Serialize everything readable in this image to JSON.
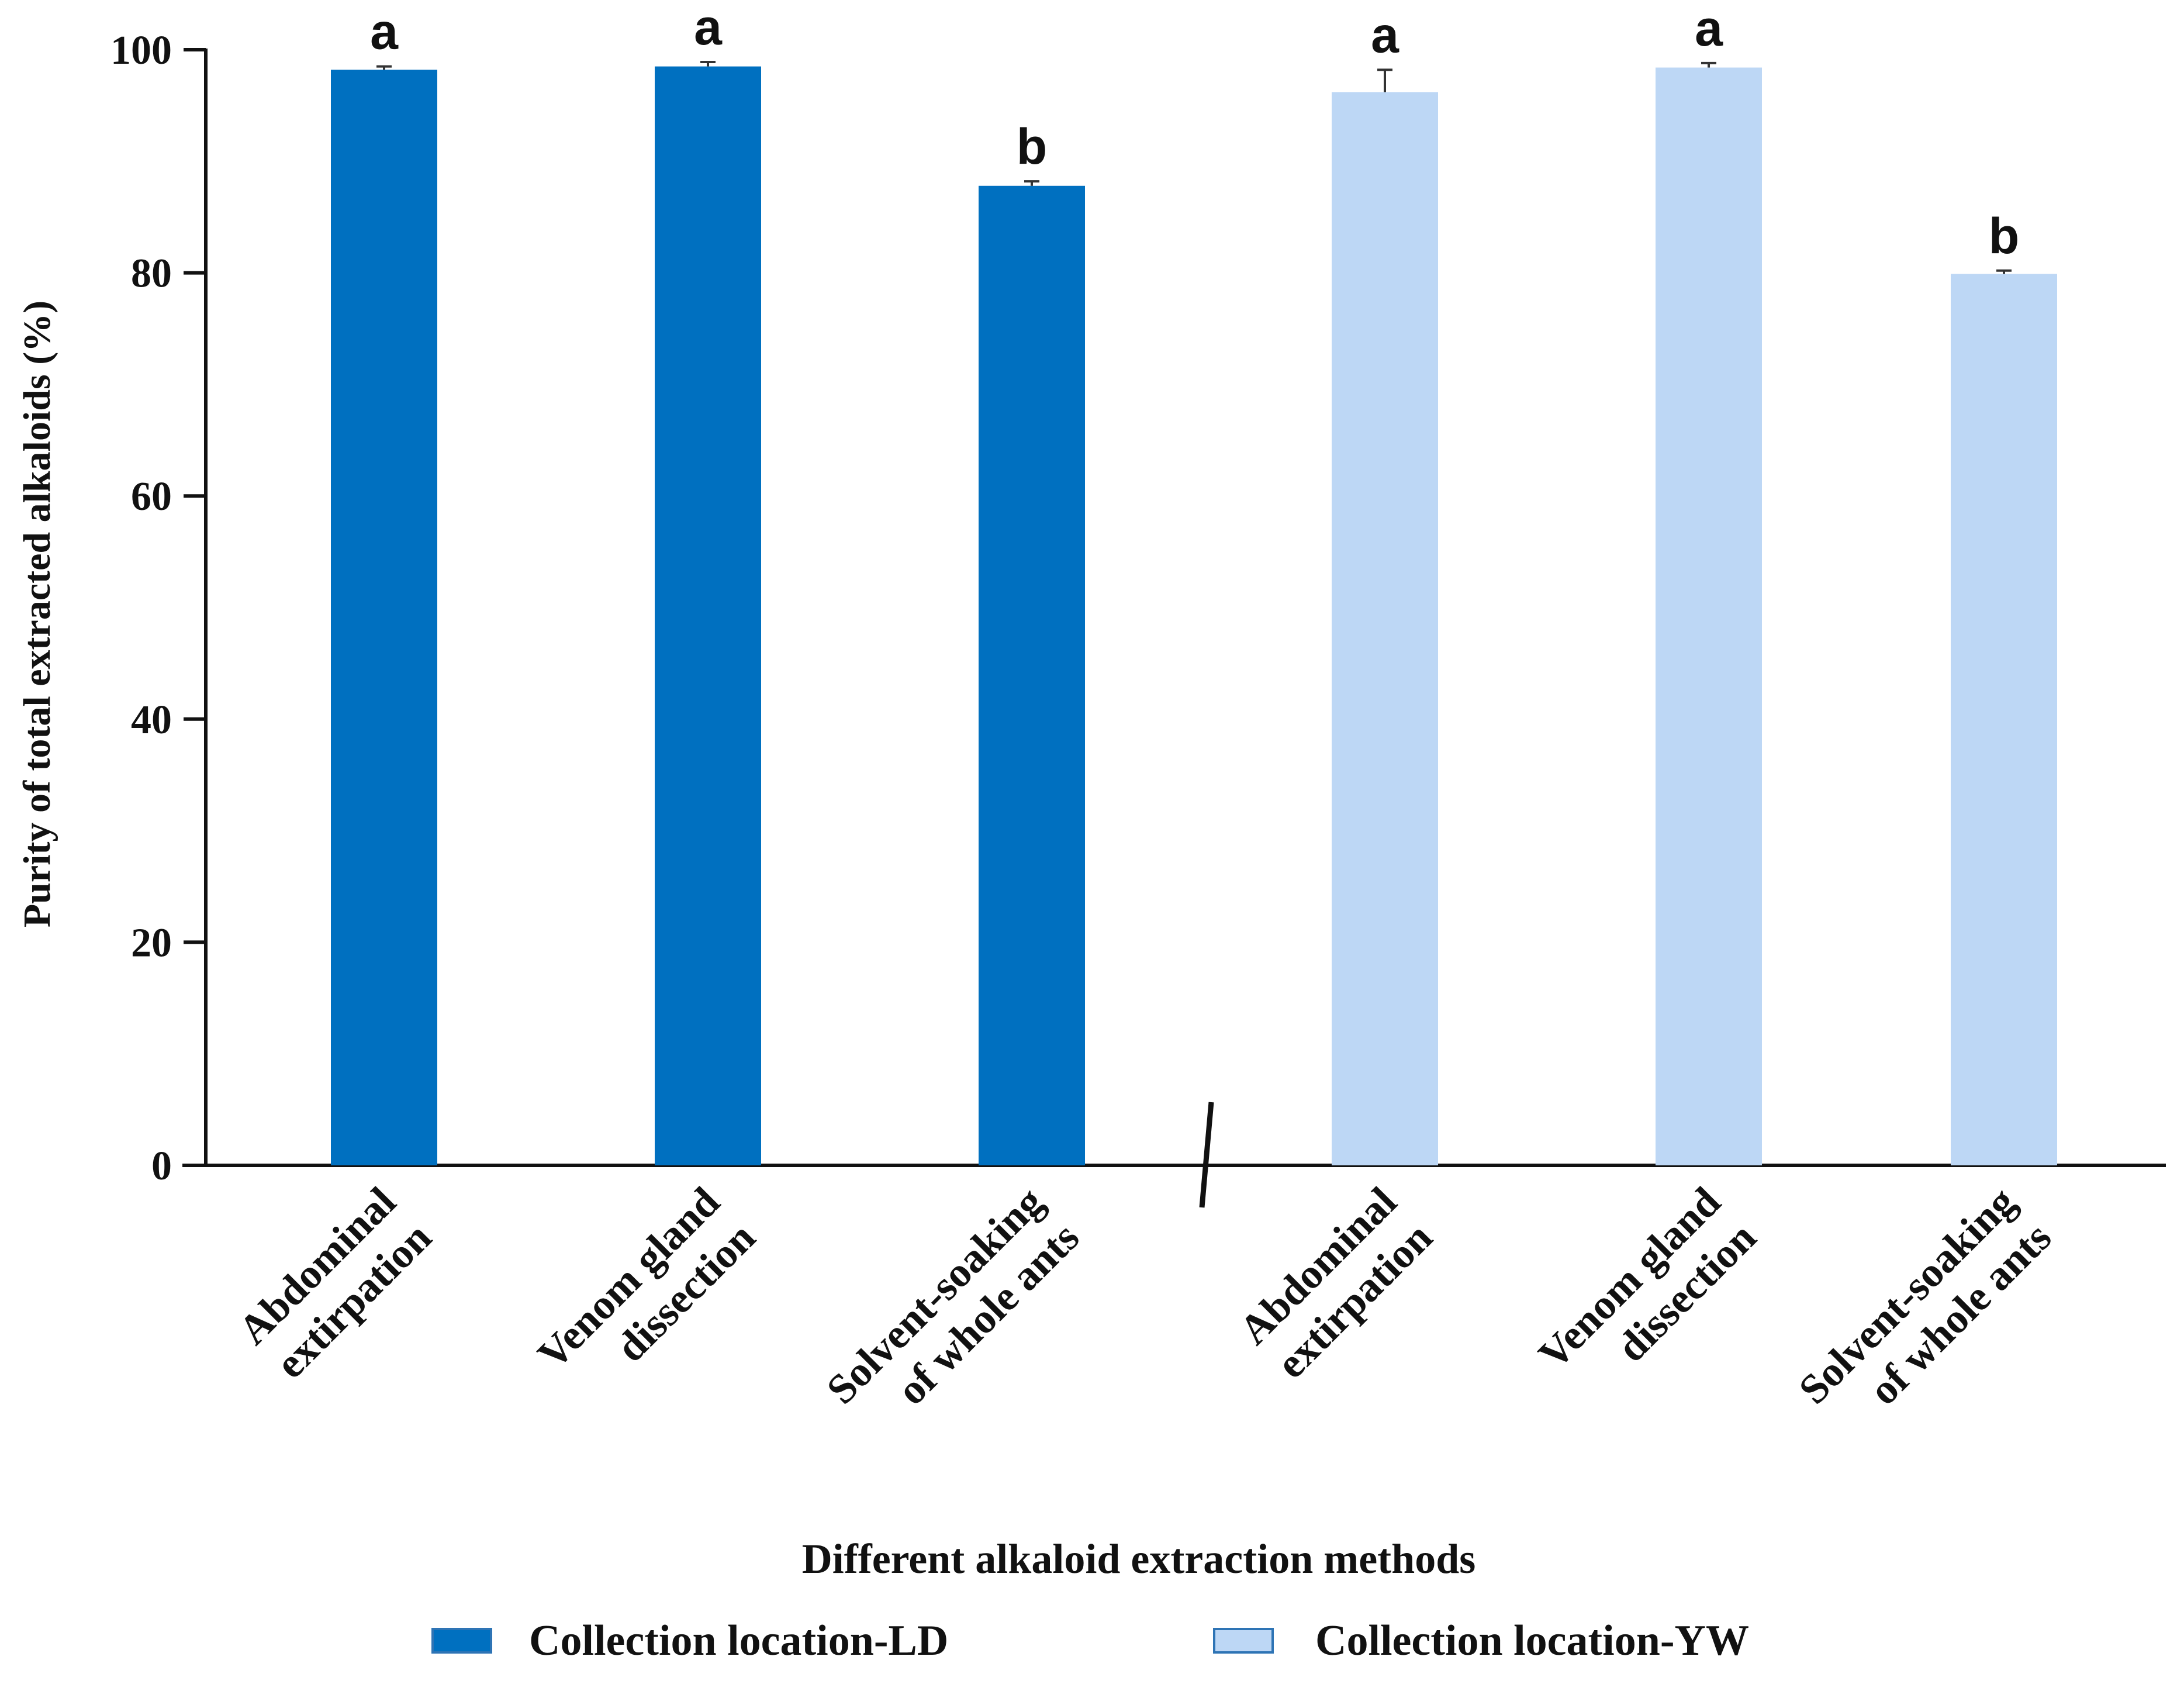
{
  "chart_data": {
    "type": "bar",
    "ylabel": "Purity of total extracted alkaloids (%)",
    "xlabel": "Different alkaloid extraction methods",
    "ylim": [
      0,
      100
    ],
    "yticks": [
      0,
      20,
      40,
      60,
      80,
      100
    ],
    "grid": false,
    "legend_position": "bottom",
    "groups": [
      {
        "name": "Collection location-LD",
        "color": "#0070C0",
        "categories": [
          "Abdominal\nextirpation",
          "Venom gland\ndissection",
          "Solvent-soaking\nof whole ants"
        ],
        "values": [
          98.2,
          98.5,
          87.8
        ],
        "errors": [
          0.3,
          0.4,
          0.4
        ],
        "letters": [
          "a",
          "a",
          "b"
        ]
      },
      {
        "name": "Collection location-YW",
        "color": "#BDD7F5",
        "categories": [
          "Abdominal\nextirpation",
          "Venom gland\ndissection",
          "Solvent-soaking\nof whole ants"
        ],
        "values": [
          96.2,
          98.4,
          79.9
        ],
        "errors": [
          2.0,
          0.4,
          0.3
        ],
        "letters": [
          "a",
          "a",
          "b"
        ]
      }
    ]
  }
}
